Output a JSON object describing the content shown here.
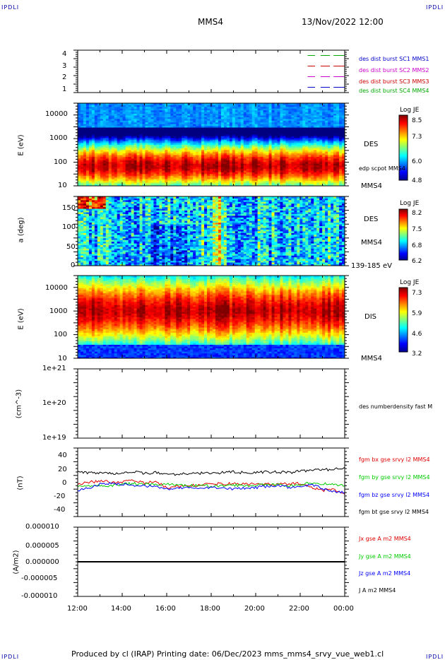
{
  "corner_label": "IPDLI",
  "header": {
    "spacecraft": "MMS4",
    "datetime": "13/Nov/2022 12:00"
  },
  "footer": {
    "text": "Produced by cl (IRAP)   Printing date: 06/Dec/2023   mms_mms4_srvy_vue_web1.cl"
  },
  "colors": {
    "mms1": "#0000cc",
    "mms2": "#cc00cc",
    "mms3": "#cc0000",
    "mms4": "#00aa00",
    "red": "#e00000",
    "green": "#00cc00",
    "blue": "#0000ff",
    "black": "#000000"
  },
  "panel1": {
    "yticks": [
      "4",
      "3",
      "2",
      "1"
    ],
    "legend": [
      "des dist burst SC1 MMS1",
      "des dist burst SC2 MMS2",
      "des dist burst SC3 MMS3",
      "des dist burst SC4 MMS4"
    ]
  },
  "panel2": {
    "ylabel": "E (eV)",
    "yticks": [
      "10000",
      "1000",
      "100",
      "10"
    ],
    "right_top": "DES",
    "right_mid": "edp scpot MMS4",
    "right_bottom": "MMS4",
    "cbar_title": "Log JE",
    "cbar_ticks": [
      "8.5",
      "7.3",
      "6.0",
      "4.8"
    ]
  },
  "panel3": {
    "ylabel": "a (deg)",
    "yticks": [
      "150",
      "100",
      "50",
      "0"
    ],
    "right_top": "DES",
    "right_mid": "MMS4",
    "right_bottom": "139-185 eV",
    "cbar_title": "Log JE",
    "cbar_ticks": [
      "8.2",
      "7.5",
      "6.8",
      "6.2"
    ]
  },
  "panel4": {
    "ylabel": "E (eV)",
    "yticks": [
      "10000",
      "1000",
      "100",
      "10"
    ],
    "right_mid": "DIS",
    "right_bottom": "MMS4",
    "cbar_title": "Log JE",
    "cbar_ticks": [
      "7.3",
      "5.9",
      "4.6",
      "3.2"
    ]
  },
  "panel5": {
    "ylabel": "(cm^-3)",
    "yticks": [
      "1e+21",
      "1e+20",
      "1e+19"
    ],
    "legend": "des numberdensity fast M"
  },
  "panel6": {
    "ylabel": "(nT)",
    "yticks": [
      "40",
      "20",
      "0",
      "-20",
      "-40"
    ],
    "legend": [
      "fgm bx gse srvy l2 MMS4",
      "fgm by gse srvy l2 MMS4",
      "fgm bz gse srvy l2 MMS4",
      "fgm bt gse srvy l2 MMS4"
    ]
  },
  "panel7": {
    "ylabel": "(A/m2)",
    "yticks": [
      "0.000010",
      "0.000005",
      "0.000000",
      "-0.000005",
      "-0.000010"
    ],
    "legend": [
      "Jx gse A m2 MMS4",
      "Jy gse A m2 MMS4",
      "Jz gse A m2 MMS4",
      "J A m2 MMS4"
    ]
  },
  "xaxis": {
    "ticks": [
      "12:00",
      "14:00",
      "16:00",
      "18:00",
      "20:00",
      "22:00",
      "00:00"
    ]
  },
  "chart_data": [
    {
      "type": "line",
      "title": "",
      "ylabel": "",
      "ylim": [
        0.5,
        4.5
      ],
      "x": [
        "12:00",
        "14:00",
        "16:00",
        "18:00",
        "20:00",
        "22:00",
        "00:00"
      ],
      "series": [
        {
          "name": "des dist burst SC1 MMS1",
          "level": 1,
          "segments": [
            [
              "22:20",
              "22:40"
            ],
            [
              "22:55",
              "23:20"
            ],
            [
              "23:30",
              "00:00"
            ]
          ]
        },
        {
          "name": "des dist burst SC2 MMS2",
          "level": 2,
          "segments": [
            [
              "22:20",
              "22:40"
            ],
            [
              "22:55",
              "23:20"
            ],
            [
              "23:30",
              "00:00"
            ]
          ]
        },
        {
          "name": "des dist burst SC3 MMS3",
          "level": 3,
          "segments": [
            [
              "22:20",
              "22:40"
            ],
            [
              "22:55",
              "23:20"
            ],
            [
              "23:30",
              "00:00"
            ]
          ]
        },
        {
          "name": "des dist burst SC4 MMS4",
          "level": 4,
          "segments": [
            [
              "22:20",
              "22:40"
            ],
            [
              "22:55",
              "23:20"
            ],
            [
              "23:30",
              "00:00"
            ]
          ]
        }
      ]
    },
    {
      "type": "heatmap",
      "ylabel": "E (eV)",
      "ylim": [
        10,
        30000
      ],
      "yscale": "log",
      "zlabel": "Log JE",
      "zlim": [
        4.8,
        8.5
      ],
      "peak_energy_eV": 70,
      "band_eV": [
        30,
        200
      ]
    },
    {
      "type": "heatmap",
      "ylabel": "a (deg)",
      "ylim": [
        0,
        180
      ],
      "zlabel": "Log JE",
      "zlim": [
        6.2,
        8.2
      ],
      "energy_range": "139-185 eV"
    },
    {
      "type": "heatmap",
      "ylabel": "E (eV)",
      "ylim": [
        10,
        30000
      ],
      "yscale": "log",
      "zlabel": "Log JE",
      "zlim": [
        3.2,
        7.3
      ],
      "peak_energy_eV": 1000,
      "band_eV": [
        200,
        4000
      ]
    },
    {
      "type": "line",
      "ylabel": "(cm^-3)",
      "ylim": [
        1e+19,
        1e+21
      ],
      "yscale": "log",
      "series": [
        {
          "name": "des numberdensity fast M",
          "values": []
        }
      ]
    },
    {
      "type": "line",
      "ylabel": "(nT)",
      "ylim": [
        -50,
        50
      ],
      "x": [
        "12:00",
        "12:30",
        "13:00",
        "13:30",
        "14:00",
        "14:30",
        "15:00",
        "15:30",
        "16:00",
        "16:30",
        "17:00",
        "17:30",
        "18:00",
        "18:30",
        "19:00",
        "19:30",
        "20:00",
        "20:30",
        "21:00",
        "21:30",
        "22:00",
        "22:30",
        "23:00",
        "23:30",
        "00:00"
      ],
      "series": [
        {
          "name": "fgm bx gse srvy l2 MMS4",
          "values": [
            -3,
            0,
            2,
            0,
            1,
            2,
            -1,
            1,
            -8,
            -6,
            -5,
            -4,
            -3,
            -2,
            -2,
            -3,
            -2,
            -3,
            -3,
            -2,
            -2,
            -8,
            -12,
            -10,
            -18
          ]
        },
        {
          "name": "fgm by gse srvy l2 MMS4",
          "values": [
            -5,
            -6,
            -4,
            -5,
            -3,
            -2,
            -3,
            -4,
            -3,
            -4,
            -5,
            -4,
            -6,
            -5,
            -4,
            -5,
            -4,
            -3,
            -4,
            -5,
            -5,
            0,
            -2,
            -3,
            -5
          ]
        },
        {
          "name": "fgm bz gse srvy l2 MMS4",
          "values": [
            -12,
            -8,
            -3,
            -2,
            -3,
            -4,
            -5,
            -6,
            -10,
            -9,
            -8,
            -9,
            -8,
            -7,
            -10,
            -9,
            -8,
            -6,
            -5,
            -7,
            -8,
            -3,
            -9,
            -14,
            -15
          ]
        },
        {
          "name": "fgm bt gse srvy l2 MMS4",
          "values": [
            15,
            14,
            14,
            13,
            14,
            15,
            13,
            14,
            12,
            12,
            13,
            13,
            14,
            14,
            15,
            14,
            14,
            15,
            15,
            14,
            16,
            18,
            18,
            19,
            22
          ]
        }
      ]
    },
    {
      "type": "line",
      "ylabel": "(A/m2)",
      "ylim": [
        -1e-05,
        1e-05
      ],
      "x": [
        "12:00",
        "00:00"
      ],
      "series": [
        {
          "name": "Jx gse A m2 MMS4",
          "values": [
            0,
            0
          ]
        },
        {
          "name": "Jy gse A m2 MMS4",
          "values": [
            0,
            0
          ]
        },
        {
          "name": "Jz gse A m2 MMS4",
          "values": [
            0,
            0
          ]
        },
        {
          "name": "J A m2 MMS4",
          "values": [
            0,
            0
          ]
        }
      ]
    }
  ]
}
